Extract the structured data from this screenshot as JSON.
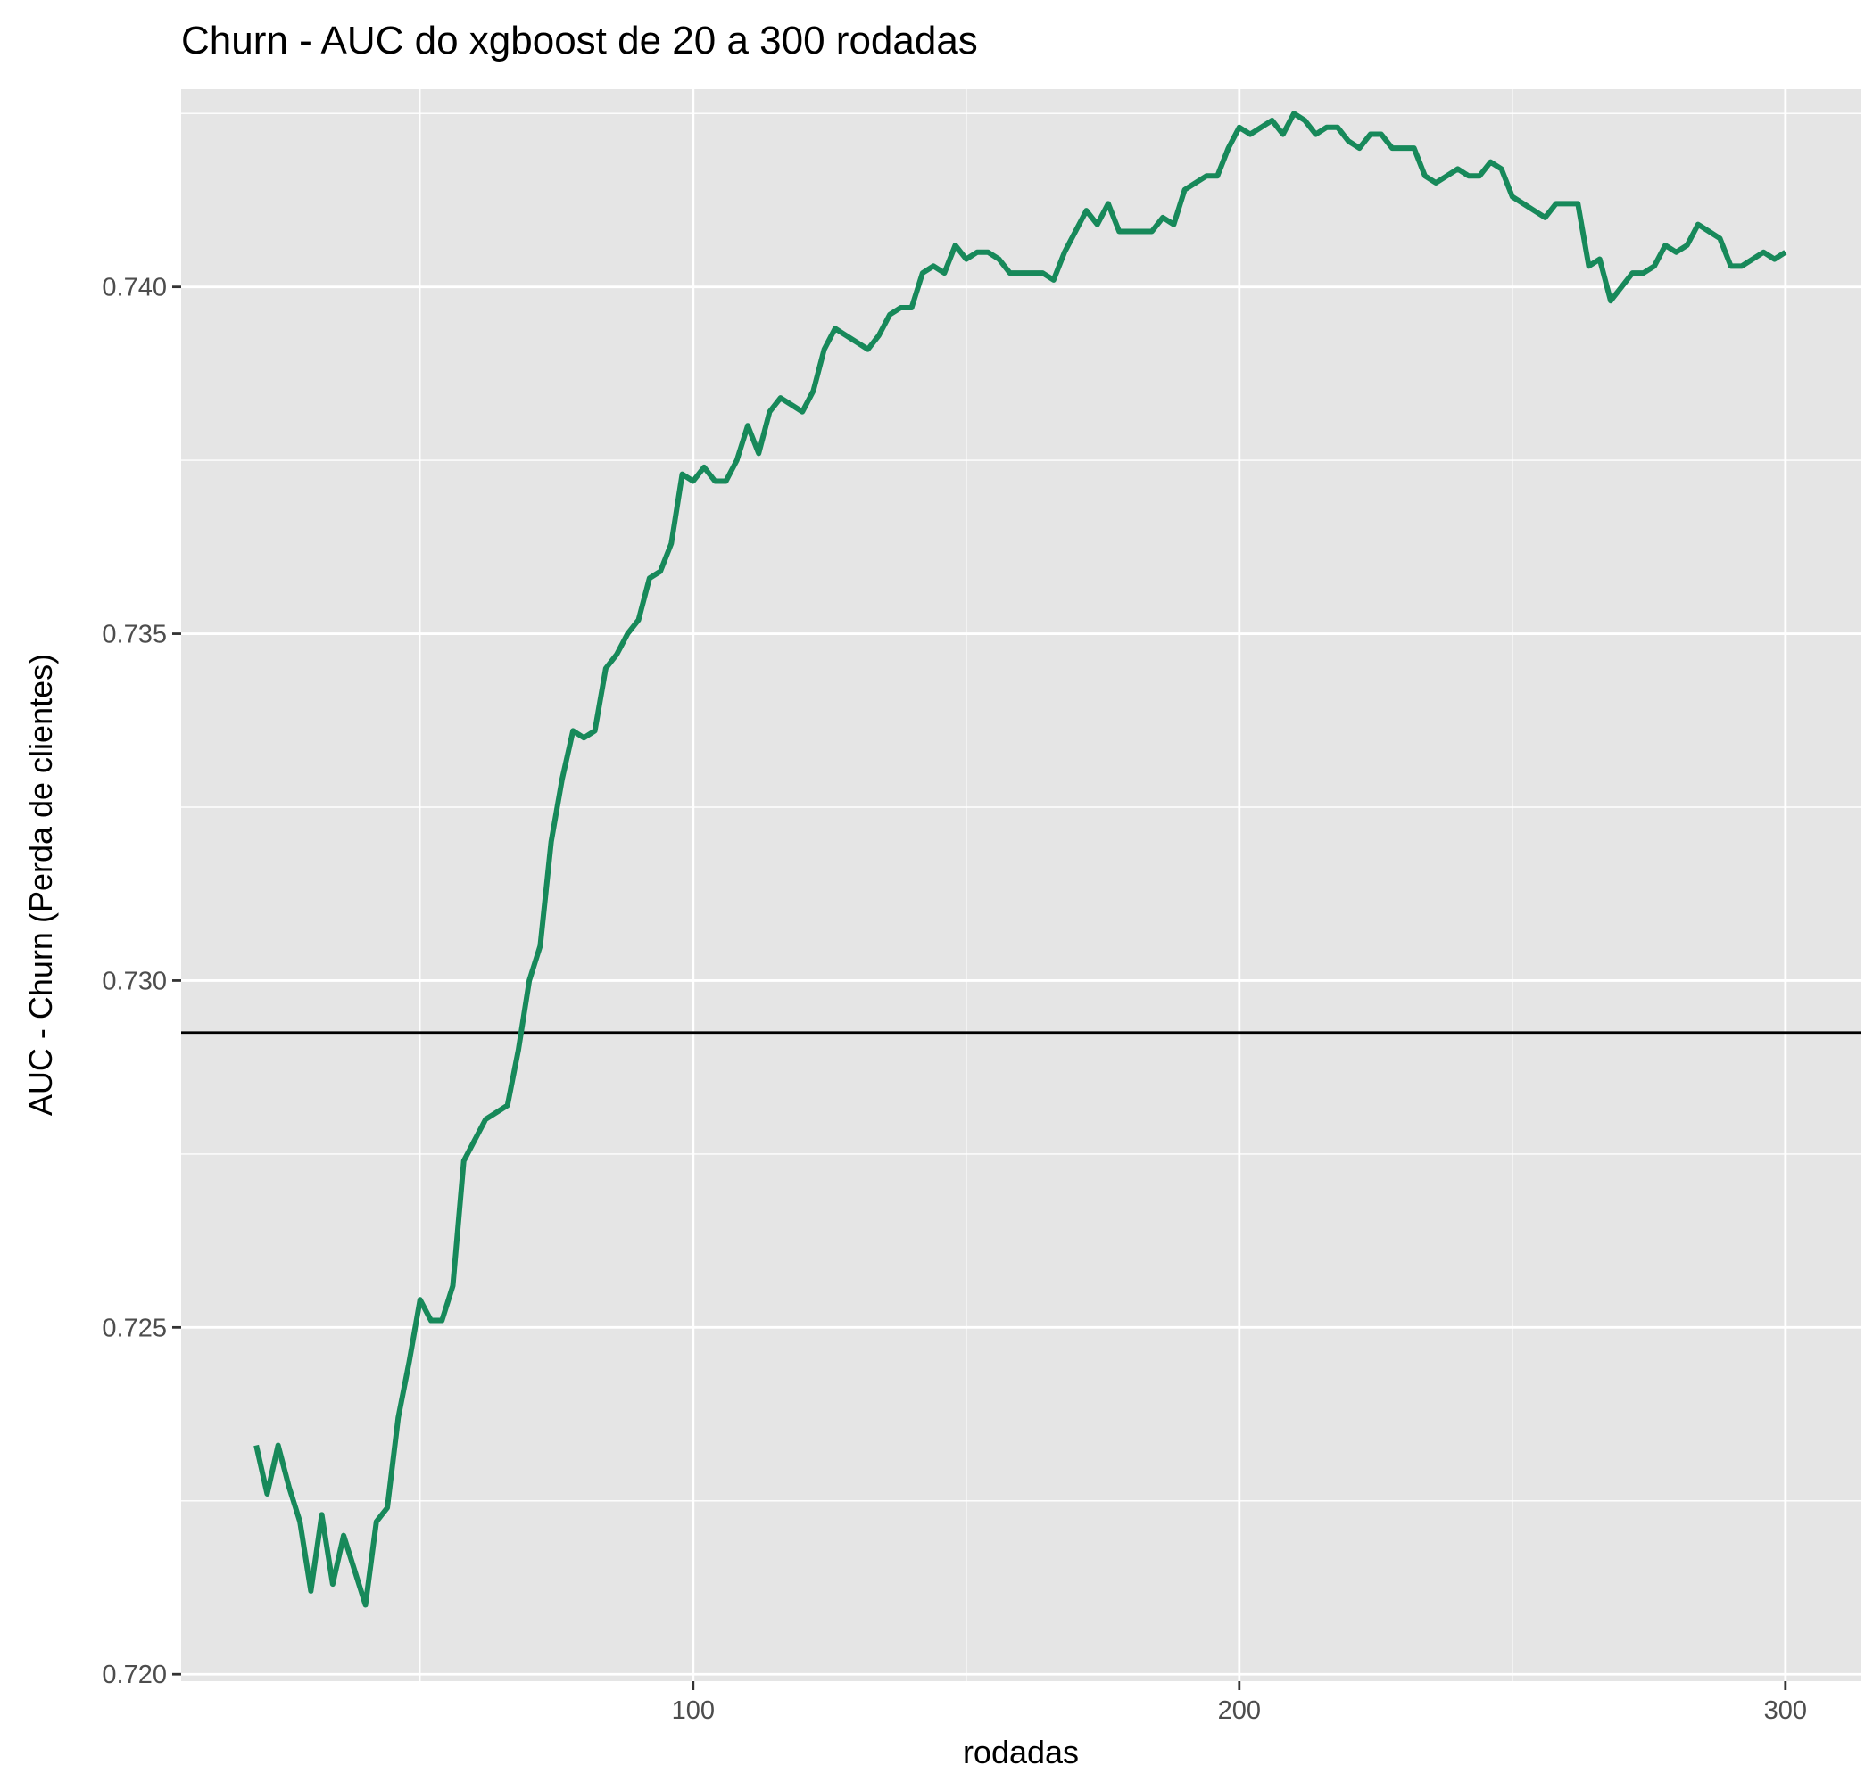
{
  "chart_data": {
    "type": "line",
    "title": "Churn - AUC do xgboost de 20 a 300 rodadas",
    "xlabel": "rodadas",
    "ylabel": "AUC - Churn (Perda de clientes)",
    "xlim": [
      6.25,
      313.75
    ],
    "ylim": [
      0.7199,
      0.74285
    ],
    "x_ticks": [
      100,
      200,
      300
    ],
    "x_tick_labels": [
      "100",
      "200",
      "300"
    ],
    "x_minor_gridlines": [
      50,
      150,
      250
    ],
    "y_ticks": [
      0.72,
      0.725,
      0.73,
      0.735,
      0.74
    ],
    "y_tick_labels": [
      "0.720",
      "0.725",
      "0.730",
      "0.735",
      "0.740"
    ],
    "y_minor_gridlines": [
      0.7225,
      0.7275,
      0.7325,
      0.7375,
      0.7425
    ],
    "grid": true,
    "legend": "none",
    "reference_line": {
      "orientation": "horizontal",
      "y": 0.72925,
      "color": "#000000"
    },
    "series": [
      {
        "color": "#17895a",
        "x": [
          20,
          22,
          24,
          26,
          28,
          30,
          32,
          34,
          36,
          38,
          40,
          42,
          44,
          46,
          48,
          50,
          52,
          54,
          56,
          58,
          60,
          62,
          64,
          66,
          68,
          70,
          72,
          74,
          76,
          78,
          80,
          82,
          84,
          86,
          88,
          90,
          92,
          94,
          96,
          98,
          100,
          102,
          104,
          106,
          108,
          110,
          112,
          114,
          116,
          118,
          120,
          122,
          124,
          126,
          128,
          130,
          132,
          134,
          136,
          138,
          140,
          142,
          144,
          146,
          148,
          150,
          152,
          154,
          156,
          158,
          160,
          162,
          164,
          166,
          168,
          170,
          172,
          174,
          176,
          178,
          180,
          182,
          184,
          186,
          188,
          190,
          192,
          194,
          196,
          198,
          200,
          202,
          204,
          206,
          208,
          210,
          212,
          214,
          216,
          218,
          220,
          222,
          224,
          226,
          228,
          230,
          232,
          234,
          236,
          238,
          240,
          242,
          244,
          246,
          248,
          250,
          252,
          254,
          256,
          258,
          260,
          262,
          264,
          266,
          268,
          270,
          272,
          274,
          276,
          278,
          280,
          282,
          284,
          286,
          288,
          290,
          292,
          294,
          296,
          298,
          300
        ],
        "y": [
          0.7233,
          0.7226,
          0.7233,
          0.7227,
          0.7222,
          0.7212,
          0.7223,
          0.7213,
          0.722,
          0.7215,
          0.721,
          0.7222,
          0.7224,
          0.7237,
          0.7245,
          0.7254,
          0.7251,
          0.7251,
          0.7256,
          0.7274,
          0.7277,
          0.728,
          0.7281,
          0.7282,
          0.729,
          0.73,
          0.7305,
          0.732,
          0.7329,
          0.7336,
          0.7335,
          0.7336,
          0.7345,
          0.7347,
          0.735,
          0.7352,
          0.7358,
          0.7359,
          0.7363,
          0.7373,
          0.7372,
          0.7374,
          0.7372,
          0.7372,
          0.7375,
          0.738,
          0.7376,
          0.7382,
          0.7384,
          0.7383,
          0.7382,
          0.7385,
          0.7391,
          0.7394,
          0.7393,
          0.7392,
          0.7391,
          0.7393,
          0.7396,
          0.7397,
          0.7397,
          0.7402,
          0.7403,
          0.7402,
          0.7406,
          0.7404,
          0.7405,
          0.7405,
          0.7404,
          0.7402,
          0.7402,
          0.7402,
          0.7402,
          0.7401,
          0.7405,
          0.7408,
          0.7411,
          0.7409,
          0.7412,
          0.7408,
          0.7408,
          0.7408,
          0.7408,
          0.741,
          0.7409,
          0.7414,
          0.7415,
          0.7416,
          0.7416,
          0.742,
          0.7423,
          0.7422,
          0.7423,
          0.7424,
          0.7422,
          0.7425,
          0.7424,
          0.7422,
          0.7423,
          0.7423,
          0.7421,
          0.742,
          0.7422,
          0.7422,
          0.742,
          0.742,
          0.742,
          0.7416,
          0.7415,
          0.7416,
          0.7417,
          0.7416,
          0.7416,
          0.7418,
          0.7417,
          0.7413,
          0.7412,
          0.7411,
          0.741,
          0.7412,
          0.7412,
          0.7412,
          0.7403,
          0.7404,
          0.7398,
          0.74,
          0.7402,
          0.7402,
          0.7403,
          0.7406,
          0.7405,
          0.7406,
          0.7409,
          0.7408,
          0.7407,
          0.7403,
          0.7403,
          0.7404,
          0.7405,
          0.7404,
          0.7405
        ]
      }
    ]
  }
}
